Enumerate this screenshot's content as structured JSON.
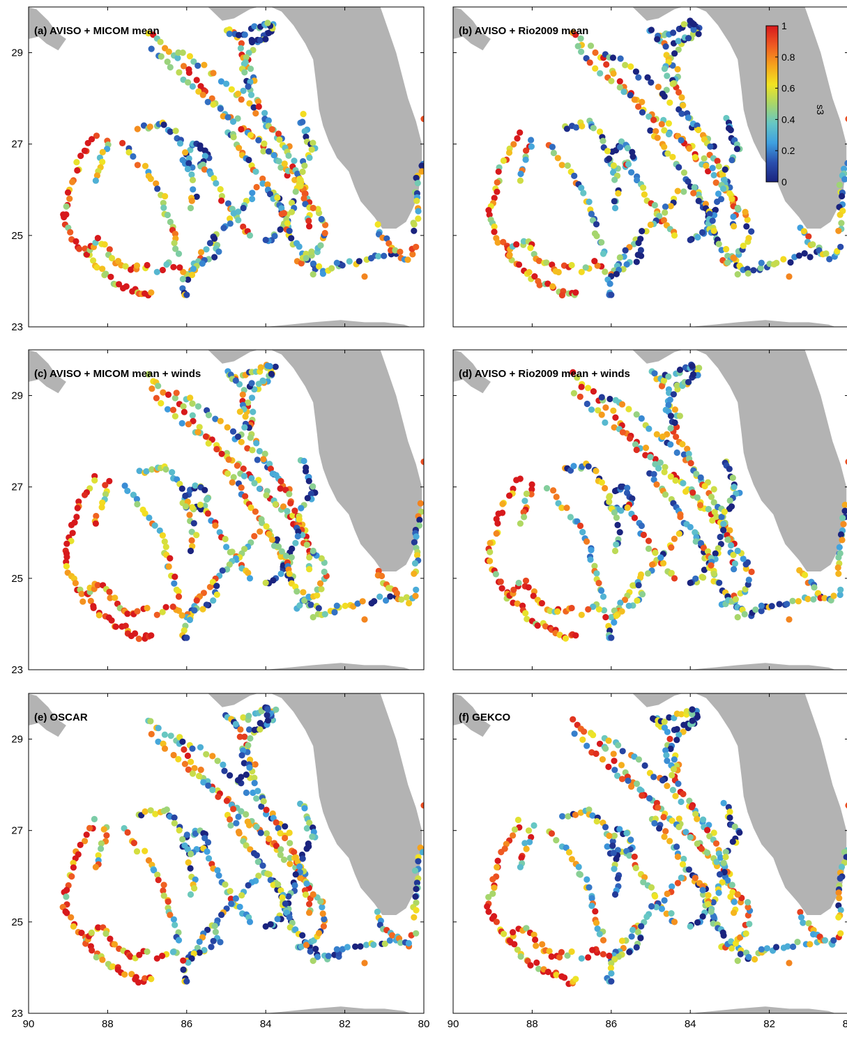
{
  "chart_data": {
    "type": "scatter",
    "panels": [
      {
        "title": "(a) AVISO + MICOM mean",
        "seed": 11,
        "bias": 0.0
      },
      {
        "title": "(b) AVISO + Rio2009 mean",
        "seed": 23,
        "bias": -0.05
      },
      {
        "title": "(c) AVISO + MICOM mean + winds",
        "seed": 37,
        "bias": 0.08
      },
      {
        "title": "(d) AVISO + Rio2009 mean + winds",
        "seed": 41,
        "bias": 0.0
      },
      {
        "title": "(e) OSCAR",
        "seed": 53,
        "bias": -0.02
      },
      {
        "title": "(f) GEKCO",
        "seed": 67,
        "bias": 0.02
      }
    ],
    "xlim": [
      90,
      80
    ],
    "ylim": [
      23,
      30
    ],
    "xticks": [
      "90",
      "88",
      "86",
      "84",
      "82",
      "80"
    ],
    "yticks": [
      "29",
      "27",
      "25",
      "23"
    ],
    "colorbar": {
      "label": "s3",
      "ticks": [
        "1",
        "0.8",
        "0.6",
        "0.4",
        "0.2",
        "0"
      ],
      "range": [
        0,
        1
      ],
      "colors": [
        "#1a237e",
        "#2a4fae",
        "#3fa0e0",
        "#66c7c4",
        "#a8d66a",
        "#f2e422",
        "#f6a21d",
        "#ef5a22",
        "#d7191c"
      ]
    },
    "tracks": [
      {
        "pts": [
          [
            87.0,
            29.45
          ],
          [
            86.7,
            29.2
          ],
          [
            86.3,
            28.95
          ],
          [
            86.0,
            28.65
          ],
          [
            85.7,
            28.3
          ],
          [
            85.4,
            28.0
          ],
          [
            85.0,
            27.7
          ],
          [
            84.6,
            27.4
          ],
          [
            84.2,
            27.1
          ],
          [
            83.9,
            26.8
          ],
          [
            83.6,
            26.5
          ],
          [
            83.3,
            26.2
          ],
          [
            83.0,
            25.9
          ],
          [
            82.8,
            25.6
          ]
        ],
        "v": 0.75
      },
      {
        "pts": [
          [
            86.9,
            29.1
          ],
          [
            86.5,
            28.75
          ],
          [
            86.1,
            28.45
          ],
          [
            85.7,
            28.15
          ],
          [
            85.3,
            27.85
          ],
          [
            84.9,
            27.55
          ],
          [
            84.5,
            27.25
          ],
          [
            84.1,
            26.95
          ],
          [
            83.7,
            26.65
          ],
          [
            83.3,
            26.35
          ],
          [
            83.0,
            26.05
          ]
        ],
        "v": 0.55
      },
      {
        "pts": [
          [
            86.2,
            29.0
          ],
          [
            85.8,
            28.85
          ],
          [
            85.4,
            28.6
          ],
          [
            85.0,
            28.3
          ],
          [
            84.6,
            28.0
          ],
          [
            84.2,
            27.65
          ],
          [
            83.8,
            27.3
          ],
          [
            83.4,
            26.95
          ]
        ],
        "v": 0.4
      },
      {
        "pts": [
          [
            84.8,
            29.4
          ],
          [
            84.6,
            29.1
          ],
          [
            84.5,
            28.8
          ],
          [
            84.3,
            28.5
          ],
          [
            84.4,
            28.2
          ],
          [
            84.2,
            27.9
          ],
          [
            84.0,
            27.6
          ],
          [
            83.8,
            27.3
          ],
          [
            83.6,
            27.0
          ],
          [
            83.4,
            26.7
          ],
          [
            83.2,
            26.4
          ],
          [
            83.1,
            26.1
          ],
          [
            83.0,
            25.8
          ],
          [
            82.9,
            25.5
          ],
          [
            82.9,
            25.2
          ]
        ],
        "v": 0.6
      },
      {
        "pts": [
          [
            85.0,
            29.5
          ],
          [
            84.8,
            29.35
          ],
          [
            84.5,
            29.45
          ],
          [
            84.2,
            29.55
          ],
          [
            84.0,
            29.65
          ],
          [
            83.8,
            29.6
          ],
          [
            83.9,
            29.4
          ],
          [
            84.2,
            29.2
          ],
          [
            84.5,
            28.9
          ],
          [
            84.6,
            28.6
          ],
          [
            84.4,
            28.35
          ],
          [
            84.7,
            28.1
          ]
        ],
        "v": 0.3
      },
      {
        "pts": [
          [
            83.1,
            27.6
          ],
          [
            83.0,
            27.35
          ],
          [
            82.9,
            27.1
          ],
          [
            82.8,
            26.9
          ],
          [
            82.95,
            26.7
          ],
          [
            83.1,
            26.4
          ],
          [
            83.2,
            26.0
          ],
          [
            83.3,
            25.7
          ],
          [
            83.4,
            25.4
          ],
          [
            83.6,
            25.15
          ],
          [
            83.8,
            24.95
          ],
          [
            84.0,
            24.9
          ]
        ],
        "v": 0.2
      },
      {
        "pts": [
          [
            83.9,
            26.0
          ],
          [
            83.7,
            25.75
          ],
          [
            83.6,
            25.5
          ],
          [
            83.5,
            25.25
          ],
          [
            83.4,
            25.05
          ],
          [
            83.3,
            24.85
          ],
          [
            83.1,
            24.65
          ],
          [
            82.9,
            24.45
          ],
          [
            82.7,
            24.3
          ],
          [
            82.5,
            24.2
          ],
          [
            82.2,
            24.3
          ],
          [
            81.9,
            24.4
          ],
          [
            81.5,
            24.45
          ],
          [
            81.1,
            24.55
          ],
          [
            80.7,
            24.6
          ]
        ],
        "v": 0.25
      },
      {
        "pts": [
          [
            83.2,
            24.4
          ],
          [
            83.0,
            24.5
          ],
          [
            82.8,
            24.6
          ],
          [
            82.6,
            24.8
          ],
          [
            82.5,
            25.1
          ],
          [
            82.6,
            25.4
          ],
          [
            82.8,
            25.6
          ]
        ],
        "v": 0.5
      },
      {
        "pts": [
          [
            86.0,
            26.8
          ],
          [
            85.8,
            27.0
          ],
          [
            85.6,
            26.95
          ],
          [
            85.45,
            26.75
          ],
          [
            85.6,
            26.55
          ],
          [
            85.9,
            26.5
          ],
          [
            86.1,
            26.65
          ]
        ],
        "v": 0.15
      },
      {
        "pts": [
          [
            87.2,
            27.35
          ],
          [
            86.9,
            27.4
          ],
          [
            86.6,
            27.45
          ],
          [
            86.4,
            27.3
          ],
          [
            86.2,
            27.1
          ],
          [
            86.0,
            26.7
          ],
          [
            85.9,
            26.3
          ],
          [
            85.8,
            25.9
          ],
          [
            85.9,
            25.6
          ]
        ],
        "v": 0.35
      },
      {
        "pts": [
          [
            85.0,
            27.3
          ],
          [
            84.8,
            27.1
          ],
          [
            84.6,
            26.85
          ],
          [
            84.4,
            26.6
          ],
          [
            84.2,
            26.35
          ],
          [
            84.0,
            26.1
          ],
          [
            83.8,
            25.85
          ],
          [
            83.6,
            25.6
          ],
          [
            83.5,
            25.35
          ],
          [
            83.4,
            25.1
          ]
        ],
        "v": 0.45
      },
      {
        "pts": [
          [
            85.6,
            26.6
          ],
          [
            85.4,
            26.3
          ],
          [
            85.2,
            26.0
          ],
          [
            85.0,
            25.7
          ],
          [
            84.8,
            25.45
          ],
          [
            84.6,
            25.2
          ],
          [
            84.4,
            25.0
          ]
        ],
        "v": 0.6
      },
      {
        "pts": [
          [
            84.2,
            26.0
          ],
          [
            84.45,
            25.75
          ],
          [
            84.7,
            25.5
          ],
          [
            84.95,
            25.3
          ],
          [
            85.2,
            25.05
          ],
          [
            85.45,
            24.8
          ],
          [
            85.7,
            24.55
          ],
          [
            85.85,
            24.3
          ],
          [
            86.0,
            24.15
          ]
        ],
        "v": 0.45
      },
      {
        "pts": [
          [
            88.3,
            27.2
          ],
          [
            88.55,
            26.9
          ],
          [
            88.75,
            26.6
          ],
          [
            88.85,
            26.25
          ],
          [
            88.95,
            25.95
          ],
          [
            89.05,
            25.6
          ],
          [
            89.1,
            25.35
          ],
          [
            88.95,
            25.05
          ],
          [
            88.75,
            24.8
          ],
          [
            88.55,
            24.6
          ],
          [
            88.3,
            24.35
          ],
          [
            88.1,
            24.15
          ],
          [
            87.85,
            24.0
          ],
          [
            87.6,
            23.9
          ],
          [
            87.35,
            23.8
          ],
          [
            87.1,
            23.7
          ],
          [
            86.9,
            23.75
          ]
        ],
        "v": 0.88
      },
      {
        "pts": [
          [
            88.0,
            27.1
          ],
          [
            88.1,
            26.8
          ],
          [
            88.2,
            26.5
          ],
          [
            88.3,
            26.2
          ]
        ],
        "v": 0.7
      },
      {
        "pts": [
          [
            87.6,
            27.0
          ],
          [
            87.3,
            26.7
          ],
          [
            87.0,
            26.4
          ],
          [
            86.8,
            26.1
          ],
          [
            86.6,
            25.8
          ],
          [
            86.5,
            25.5
          ],
          [
            86.4,
            25.2
          ],
          [
            86.3,
            24.9
          ],
          [
            86.2,
            24.6
          ]
        ],
        "v": 0.55
      },
      {
        "pts": [
          [
            88.6,
            24.55
          ],
          [
            88.45,
            24.75
          ],
          [
            88.2,
            24.9
          ],
          [
            88.0,
            24.7
          ],
          [
            87.8,
            24.45
          ],
          [
            87.55,
            24.3
          ],
          [
            87.3,
            24.25
          ],
          [
            87.0,
            24.35
          ]
        ],
        "v": 0.82
      },
      {
        "pts": [
          [
            81.2,
            25.2
          ],
          [
            81.05,
            24.95
          ],
          [
            80.85,
            24.75
          ],
          [
            80.65,
            24.6
          ],
          [
            80.4,
            24.5
          ],
          [
            80.2,
            24.75
          ]
        ],
        "v": 0.55
      },
      {
        "pts": [
          [
            80.05,
            26.6
          ],
          [
            80.1,
            26.3
          ],
          [
            80.2,
            26.0
          ],
          [
            80.2,
            25.7
          ],
          [
            80.2,
            25.4
          ],
          [
            80.25,
            25.1
          ]
        ],
        "v": 0.35
      },
      {
        "pts": [
          [
            85.3,
            24.9
          ],
          [
            85.2,
            24.6
          ],
          [
            85.5,
            24.4
          ],
          [
            85.8,
            24.25
          ],
          [
            86.05,
            24.0
          ],
          [
            86.05,
            23.7
          ]
        ],
        "v": 0.25
      },
      {
        "pts": [
          [
            86.1,
            24.2
          ],
          [
            86.4,
            24.4
          ],
          [
            86.75,
            24.2
          ]
        ],
        "v": 0.75
      },
      {
        "pts": [
          [
            84.4,
            29.2
          ],
          [
            84.1,
            29.3
          ],
          [
            83.85,
            29.45
          ],
          [
            83.95,
            29.65
          ]
        ],
        "v": 0.15
      }
    ],
    "extra_points": [
      [
        80.0,
        27.55,
        0.9
      ],
      [
        86.0,
        23.7,
        0.1
      ],
      [
        82.8,
        24.15,
        0.5
      ],
      [
        81.5,
        24.1,
        0.8
      ],
      [
        82.2,
        24.4,
        0.2
      ]
    ]
  }
}
